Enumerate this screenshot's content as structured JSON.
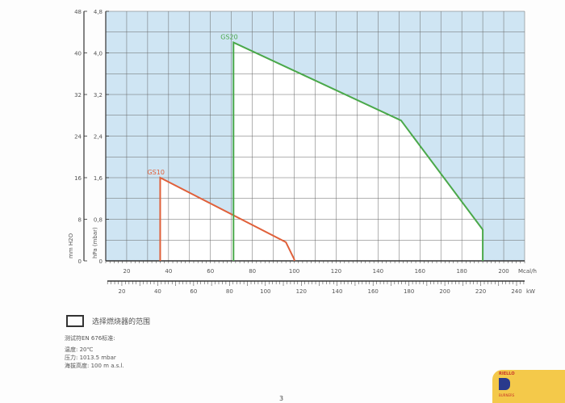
{
  "chart_data": {
    "type": "area",
    "x": {
      "label": "Mcal/h",
      "range": [
        10,
        210
      ],
      "ticks": [
        20,
        40,
        60,
        80,
        100,
        120,
        140,
        160,
        180,
        200
      ]
    },
    "x2": {
      "label": "kW",
      "ticks": [
        20,
        40,
        60,
        80,
        100,
        120,
        140,
        160,
        180,
        200,
        220,
        240
      ]
    },
    "y": {
      "label": "hPa (mbar)",
      "range": [
        0,
        4.8
      ],
      "ticks": [
        "0",
        "0,8",
        "1,6",
        "2,4",
        "3,2",
        "4,0",
        "4,8"
      ]
    },
    "y2": {
      "label": "mm H2O",
      "ticks": [
        "0",
        "8",
        "16",
        "24",
        "32",
        "40",
        "48"
      ]
    },
    "grid": true,
    "series": [
      {
        "name": "GS10",
        "color": "#e0603a",
        "points": [
          [
            36,
            0
          ],
          [
            36,
            1.6
          ],
          [
            96,
            0.36
          ],
          [
            100,
            0.03
          ],
          [
            100,
            0
          ]
        ]
      },
      {
        "name": "GS20",
        "color": "#4aa84a",
        "points": [
          [
            71,
            0
          ],
          [
            71,
            4.2
          ],
          [
            151,
            2.7
          ],
          [
            190,
            0.6
          ],
          [
            190,
            0
          ]
        ]
      }
    ],
    "background_color": "#cfe5f3"
  },
  "legend_label": "选择燃烧器的范围",
  "notes": {
    "heading": "测试符EN 676标准:",
    "lines": [
      "温度:   20℃",
      "压力:   1013.5 mbar",
      "海拔高度:  100 m a.s.l."
    ]
  },
  "page_number": "3",
  "logo_text": "RIELLO"
}
